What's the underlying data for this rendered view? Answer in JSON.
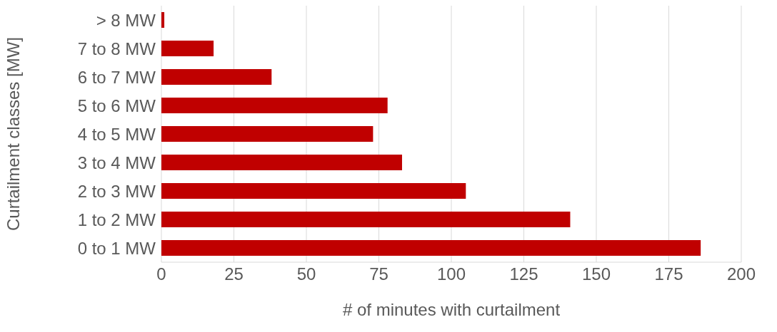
{
  "chart_data": {
    "type": "bar",
    "orientation": "horizontal",
    "xlabel": "# of minutes with curtailment",
    "ylabel": "Curtailment classes [MW]",
    "categories": [
      "> 8 MW",
      "7 to 8 MW",
      "6 to 7 MW",
      "5 to 6 MW",
      "4 to 5 MW",
      "3 to 4 MW",
      "2 to 3 MW",
      "1 to 2 MW",
      "0 to 1 MW"
    ],
    "values": [
      1,
      18,
      38,
      78,
      73,
      83,
      105,
      141,
      186
    ],
    "color": "#c00000",
    "xlim": [
      0,
      200
    ],
    "xticks": [
      0,
      25,
      50,
      75,
      100,
      125,
      150,
      175,
      200
    ],
    "grid": "x"
  }
}
